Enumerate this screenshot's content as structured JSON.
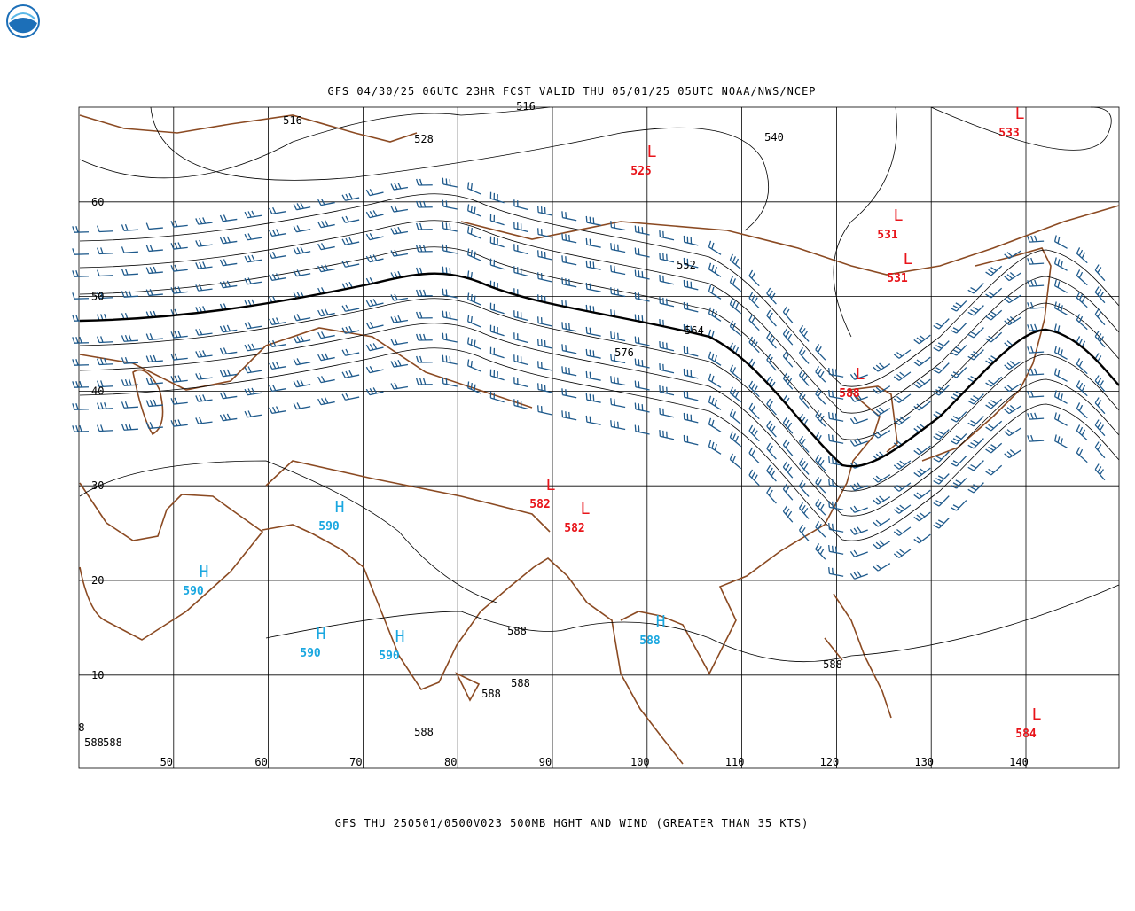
{
  "header": {
    "title": "GFS 04/30/25 06UTC 23HR FCST VALID THU 05/01/25 05UTC NOAA/NWS/NCEP"
  },
  "footer": {
    "caption": "GFS THU 250501/0500V023 500MB HGHT AND WIND (GREATER THAN 35 KTS)"
  },
  "map": {
    "lat_labels": [
      "60",
      "50",
      "40",
      "30",
      "20",
      "10"
    ],
    "lon_labels": [
      "50",
      "60",
      "70",
      "80",
      "90",
      "100",
      "110",
      "120",
      "130",
      "140"
    ],
    "contour_labels": [
      "516",
      "516",
      "528",
      "540",
      "552",
      "564",
      "576",
      "588",
      "588",
      "588",
      "588",
      "588",
      "588",
      "588",
      "8"
    ],
    "systems": [
      {
        "type": "L",
        "value": "533"
      },
      {
        "type": "L",
        "value": "525"
      },
      {
        "type": "L",
        "value": "531"
      },
      {
        "type": "L",
        "value": "531"
      },
      {
        "type": "L",
        "value": "588"
      },
      {
        "type": "L",
        "value": "582"
      },
      {
        "type": "L",
        "value": "582"
      },
      {
        "type": "L",
        "value": "584"
      },
      {
        "type": "H",
        "value": "590"
      },
      {
        "type": "H",
        "value": "590"
      },
      {
        "type": "H",
        "value": "590"
      },
      {
        "type": "H",
        "value": "590"
      },
      {
        "type": "H",
        "value": "588"
      }
    ]
  }
}
